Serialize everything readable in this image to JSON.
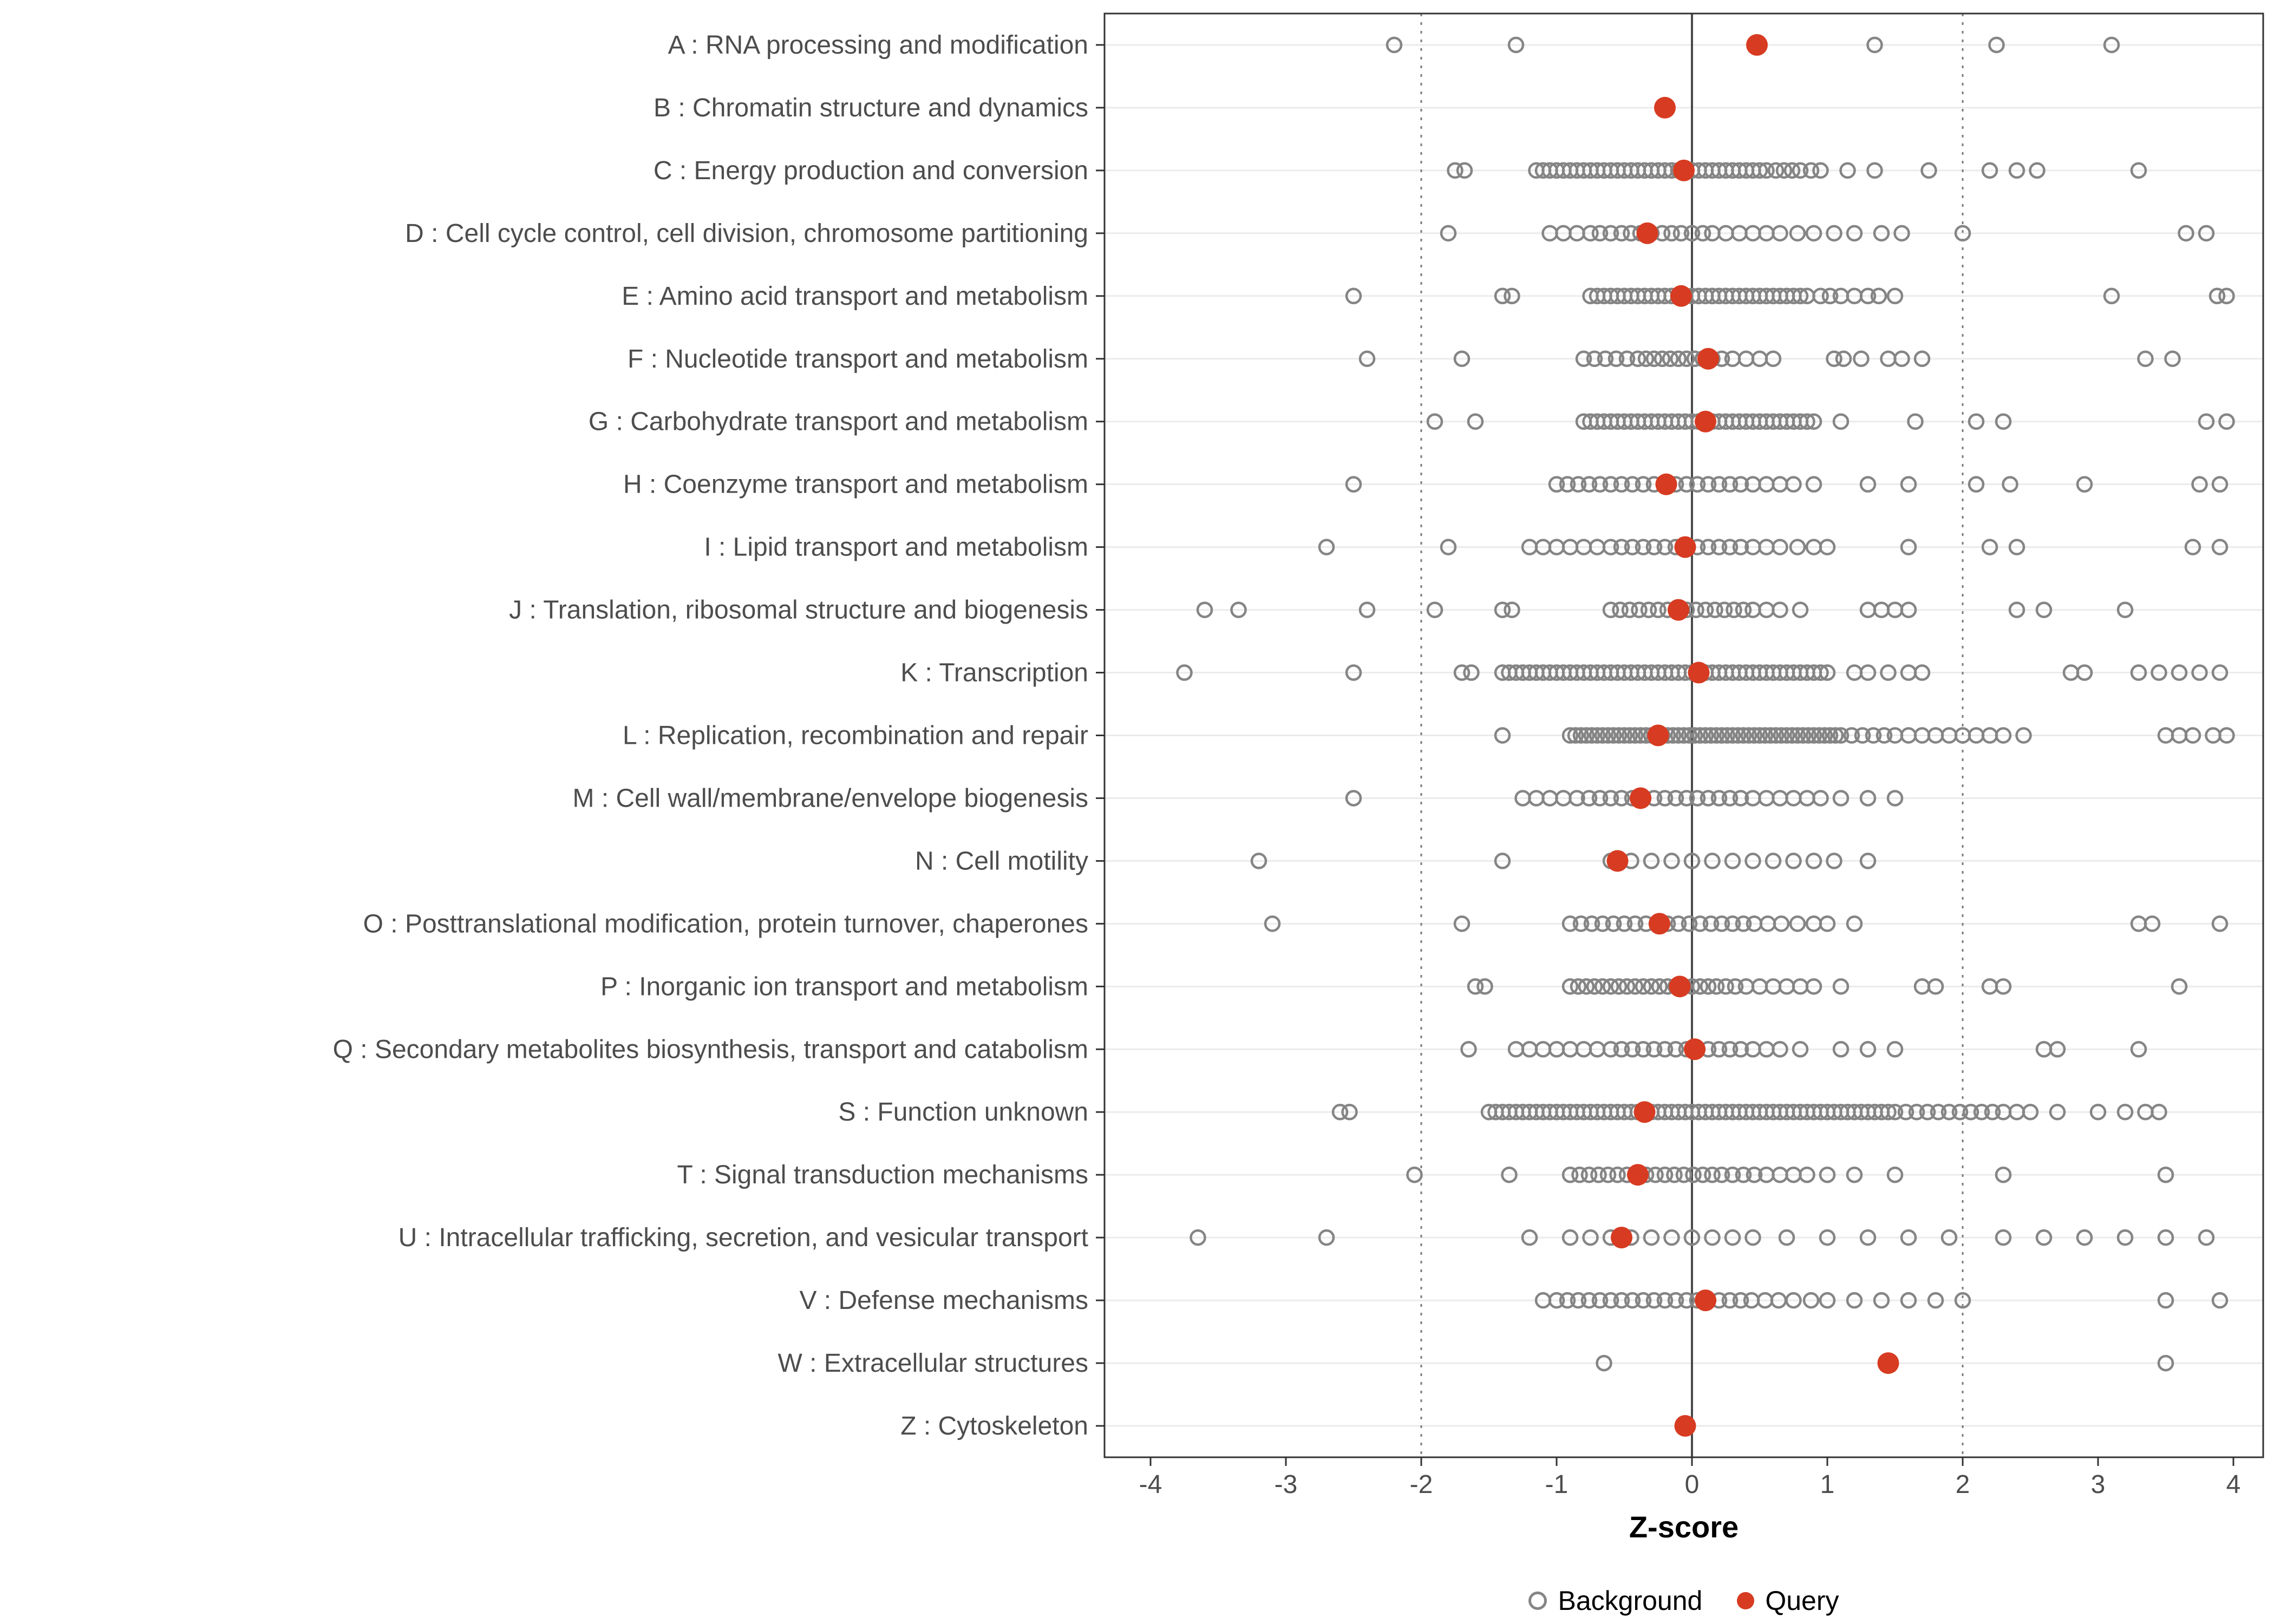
{
  "chart_data": {
    "type": "scatter",
    "title": "",
    "xlabel": "Z-score",
    "ylabel": "",
    "xlim": [
      -4.45,
      4.3
    ],
    "x_ticks": [
      -4,
      -3,
      -2,
      -1,
      0,
      1,
      2,
      3,
      4
    ],
    "grid": "horizontal-light",
    "reference_lines": {
      "solid": 0,
      "dotted": [
        -2,
        2
      ]
    },
    "legend": {
      "position": "bottom",
      "background_label": "Background",
      "query_label": "Query"
    },
    "colors": {
      "background_stroke": "#858585",
      "query_fill": "#d73b21",
      "axis_text": "#4d4d4d",
      "panel_border": "#333333",
      "gridline": "#ebebeb",
      "zero_line": "#4a4a4a",
      "dotted_line": "#7a7a7a"
    },
    "categories": [
      "A : RNA processing and modification",
      "B : Chromatin structure and dynamics",
      "C : Energy production and conversion",
      "D : Cell cycle control, cell division, chromosome partitioning",
      "E : Amino acid transport and metabolism",
      "F : Nucleotide transport and metabolism",
      "G : Carbohydrate transport and metabolism",
      "H : Coenzyme transport and metabolism",
      "I : Lipid transport and metabolism",
      "J : Translation, ribosomal structure and biogenesis",
      "K : Transcription",
      "L : Replication, recombination and repair",
      "M : Cell wall/membrane/envelope biogenesis",
      "N : Cell motility",
      "O : Posttranslational modification, protein turnover, chaperones",
      "P : Inorganic ion transport and metabolism",
      "Q : Secondary metabolites biosynthesis, transport and catabolism",
      "S : Function unknown",
      "T : Signal transduction mechanisms",
      "U : Intracellular trafficking, secretion, and vesicular transport",
      "V : Defense mechanisms",
      "W : Extracellular structures",
      "Z : Cytoskeleton"
    ],
    "query_values": [
      0.48,
      -0.2,
      -0.06,
      -0.33,
      -0.08,
      0.12,
      0.1,
      -0.19,
      -0.05,
      -0.1,
      0.05,
      -0.25,
      -0.38,
      -0.55,
      -0.24,
      -0.09,
      0.02,
      -0.35,
      -0.4,
      -0.52,
      0.1,
      1.45,
      -0.05
    ],
    "background_values": [
      [
        -2.2,
        -1.3,
        1.35,
        2.25,
        3.1
      ],
      [],
      [
        -1.75,
        -1.68,
        -1.15,
        -1.1,
        -1.05,
        -1.0,
        -0.95,
        -0.9,
        -0.85,
        -0.8,
        -0.75,
        -0.7,
        -0.65,
        -0.6,
        -0.55,
        -0.5,
        -0.45,
        -0.4,
        -0.35,
        -0.3,
        -0.25,
        -0.2,
        -0.15,
        -0.1,
        -0.05,
        0,
        0.05,
        0.1,
        0.15,
        0.2,
        0.25,
        0.3,
        0.35,
        0.4,
        0.45,
        0.5,
        0.55,
        0.62,
        0.68,
        0.74,
        0.8,
        0.88,
        0.95,
        1.15,
        1.35,
        1.75,
        2.2,
        2.4,
        2.55,
        3.3
      ],
      [
        -1.8,
        -1.05,
        -0.95,
        -0.85,
        -0.75,
        -0.68,
        -0.6,
        -0.52,
        -0.45,
        -0.38,
        -0.3,
        -0.22,
        -0.15,
        -0.08,
        0,
        0.08,
        0.15,
        0.25,
        0.35,
        0.45,
        0.55,
        0.65,
        0.78,
        0.9,
        1.05,
        1.2,
        1.4,
        1.55,
        2.0,
        3.65,
        3.8
      ],
      [
        -2.5,
        -1.4,
        -1.33,
        -0.75,
        -0.7,
        -0.65,
        -0.6,
        -0.55,
        -0.5,
        -0.45,
        -0.4,
        -0.35,
        -0.3,
        -0.25,
        -0.2,
        -0.15,
        -0.1,
        -0.05,
        0,
        0.05,
        0.1,
        0.15,
        0.2,
        0.25,
        0.3,
        0.35,
        0.4,
        0.45,
        0.5,
        0.55,
        0.6,
        0.65,
        0.7,
        0.75,
        0.8,
        0.85,
        0.95,
        1.02,
        1.1,
        1.2,
        1.3,
        1.38,
        1.5,
        3.1,
        3.88,
        3.95
      ],
      [
        -2.4,
        -1.7,
        -0.8,
        -0.72,
        -0.64,
        -0.56,
        -0.48,
        -0.4,
        -0.34,
        -0.28,
        -0.22,
        -0.16,
        -0.1,
        -0.04,
        0.02,
        0.08,
        0.15,
        0.22,
        0.3,
        0.4,
        0.5,
        0.6,
        1.05,
        1.12,
        1.25,
        1.45,
        1.55,
        1.7,
        3.35,
        3.55
      ],
      [
        -1.9,
        -1.6,
        -0.8,
        -0.75,
        -0.7,
        -0.65,
        -0.6,
        -0.55,
        -0.5,
        -0.45,
        -0.4,
        -0.35,
        -0.3,
        -0.25,
        -0.2,
        -0.15,
        -0.1,
        -0.05,
        0,
        0.05,
        0.1,
        0.15,
        0.2,
        0.25,
        0.3,
        0.35,
        0.4,
        0.45,
        0.5,
        0.55,
        0.6,
        0.65,
        0.7,
        0.75,
        0.8,
        0.85,
        0.9,
        1.1,
        1.65,
        2.1,
        2.3,
        3.8,
        3.95
      ],
      [
        -2.5,
        -1.0,
        -0.92,
        -0.84,
        -0.76,
        -0.68,
        -0.6,
        -0.52,
        -0.44,
        -0.36,
        -0.28,
        -0.2,
        -0.12,
        -0.04,
        0.04,
        0.12,
        0.2,
        0.28,
        0.36,
        0.45,
        0.55,
        0.65,
        0.75,
        0.9,
        1.3,
        1.6,
        2.1,
        2.35,
        2.9,
        3.75,
        3.9
      ],
      [
        -2.7,
        -1.8,
        -1.2,
        -1.1,
        -1.0,
        -0.9,
        -0.8,
        -0.7,
        -0.6,
        -0.52,
        -0.44,
        -0.36,
        -0.28,
        -0.2,
        -0.12,
        -0.04,
        0.04,
        0.12,
        0.2,
        0.28,
        0.36,
        0.45,
        0.55,
        0.65,
        0.78,
        0.9,
        1.0,
        1.6,
        2.2,
        2.4,
        3.7,
        3.9
      ],
      [
        -3.6,
        -3.35,
        -2.4,
        -1.9,
        -1.4,
        -1.33,
        -0.6,
        -0.53,
        -0.46,
        -0.39,
        -0.32,
        -0.25,
        -0.18,
        -0.11,
        -0.04,
        0.03,
        0.1,
        0.17,
        0.24,
        0.31,
        0.38,
        0.45,
        0.55,
        0.65,
        0.8,
        1.3,
        1.4,
        1.5,
        1.6,
        2.4,
        2.6,
        3.2
      ],
      [
        -3.75,
        -2.5,
        -1.7,
        -1.63,
        -1.4,
        -1.35,
        -1.3,
        -1.25,
        -1.2,
        -1.15,
        -1.1,
        -1.05,
        -1.0,
        -0.95,
        -0.9,
        -0.85,
        -0.8,
        -0.75,
        -0.7,
        -0.65,
        -0.6,
        -0.55,
        -0.5,
        -0.45,
        -0.4,
        -0.35,
        -0.3,
        -0.25,
        -0.2,
        -0.15,
        -0.1,
        -0.05,
        0,
        0.05,
        0.1,
        0.15,
        0.2,
        0.25,
        0.3,
        0.35,
        0.4,
        0.45,
        0.5,
        0.55,
        0.6,
        0.65,
        0.7,
        0.75,
        0.8,
        0.85,
        0.9,
        0.95,
        1.0,
        1.2,
        1.3,
        1.45,
        1.6,
        1.7,
        2.8,
        2.9,
        3.3,
        3.45,
        3.6,
        3.75,
        3.9
      ],
      [
        -1.4,
        -0.9,
        -0.86,
        -0.82,
        -0.78,
        -0.74,
        -0.7,
        -0.66,
        -0.62,
        -0.58,
        -0.54,
        -0.5,
        -0.46,
        -0.42,
        -0.38,
        -0.34,
        -0.3,
        -0.26,
        -0.22,
        -0.18,
        -0.14,
        -0.1,
        -0.06,
        -0.02,
        0.02,
        0.06,
        0.1,
        0.14,
        0.18,
        0.22,
        0.26,
        0.3,
        0.34,
        0.38,
        0.42,
        0.46,
        0.5,
        0.54,
        0.58,
        0.62,
        0.66,
        0.7,
        0.74,
        0.78,
        0.82,
        0.86,
        0.9,
        0.94,
        0.98,
        1.02,
        1.06,
        1.1,
        1.18,
        1.26,
        1.34,
        1.42,
        1.5,
        1.6,
        1.7,
        1.8,
        1.9,
        2.0,
        2.1,
        2.2,
        2.3,
        2.45,
        3.5,
        3.6,
        3.7,
        3.85,
        3.95
      ],
      [
        -2.5,
        -1.25,
        -1.15,
        -1.05,
        -0.95,
        -0.85,
        -0.76,
        -0.68,
        -0.6,
        -0.52,
        -0.44,
        -0.36,
        -0.28,
        -0.2,
        -0.12,
        -0.04,
        0.04,
        0.12,
        0.2,
        0.28,
        0.36,
        0.45,
        0.55,
        0.65,
        0.75,
        0.85,
        0.95,
        1.1,
        1.3,
        1.5
      ],
      [
        -3.2,
        -1.4,
        -0.6,
        -0.45,
        -0.3,
        -0.15,
        0,
        0.15,
        0.3,
        0.45,
        0.6,
        0.75,
        0.9,
        1.05,
        1.3
      ],
      [
        -3.1,
        -1.7,
        -0.9,
        -0.82,
        -0.74,
        -0.66,
        -0.58,
        -0.5,
        -0.42,
        -0.34,
        -0.26,
        -0.18,
        -0.1,
        -0.02,
        0.06,
        0.14,
        0.22,
        0.3,
        0.38,
        0.46,
        0.56,
        0.66,
        0.78,
        0.9,
        1.0,
        1.2,
        3.3,
        3.4,
        3.9
      ],
      [
        -1.6,
        -1.53,
        -0.9,
        -0.84,
        -0.78,
        -0.72,
        -0.66,
        -0.6,
        -0.54,
        -0.48,
        -0.42,
        -0.36,
        -0.3,
        -0.24,
        -0.18,
        -0.12,
        -0.06,
        0,
        0.06,
        0.12,
        0.18,
        0.25,
        0.32,
        0.4,
        0.5,
        0.6,
        0.7,
        0.8,
        0.9,
        1.1,
        1.7,
        1.8,
        2.2,
        2.3,
        3.6
      ],
      [
        -1.65,
        -1.3,
        -1.2,
        -1.1,
        -1.0,
        -0.9,
        -0.8,
        -0.7,
        -0.6,
        -0.52,
        -0.44,
        -0.36,
        -0.28,
        -0.2,
        -0.12,
        -0.04,
        0.04,
        0.12,
        0.2,
        0.28,
        0.36,
        0.45,
        0.55,
        0.65,
        0.8,
        1.1,
        1.3,
        1.5,
        2.6,
        2.7,
        3.3
      ],
      [
        -2.6,
        -2.53,
        -1.5,
        -1.45,
        -1.4,
        -1.35,
        -1.3,
        -1.25,
        -1.2,
        -1.15,
        -1.1,
        -1.05,
        -1.0,
        -0.95,
        -0.9,
        -0.85,
        -0.8,
        -0.75,
        -0.7,
        -0.65,
        -0.6,
        -0.55,
        -0.5,
        -0.45,
        -0.4,
        -0.35,
        -0.3,
        -0.25,
        -0.2,
        -0.15,
        -0.1,
        -0.05,
        0,
        0.05,
        0.1,
        0.15,
        0.2,
        0.25,
        0.3,
        0.35,
        0.4,
        0.45,
        0.5,
        0.55,
        0.6,
        0.65,
        0.7,
        0.75,
        0.8,
        0.85,
        0.9,
        0.95,
        1.0,
        1.05,
        1.1,
        1.15,
        1.2,
        1.25,
        1.3,
        1.35,
        1.4,
        1.45,
        1.5,
        1.58,
        1.66,
        1.74,
        1.82,
        1.9,
        1.98,
        2.06,
        2.14,
        2.22,
        2.3,
        2.4,
        2.5,
        2.7,
        3.0,
        3.2,
        3.35,
        3.45
      ],
      [
        -2.05,
        -1.35,
        -0.9,
        -0.83,
        -0.76,
        -0.69,
        -0.62,
        -0.55,
        -0.48,
        -0.41,
        -0.34,
        -0.27,
        -0.2,
        -0.13,
        -0.06,
        0.01,
        0.08,
        0.15,
        0.22,
        0.3,
        0.38,
        0.46,
        0.55,
        0.65,
        0.75,
        0.85,
        1.0,
        1.2,
        1.5,
        2.3,
        3.5
      ],
      [
        -3.65,
        -2.7,
        -1.2,
        -0.9,
        -0.75,
        -0.6,
        -0.45,
        -0.3,
        -0.15,
        0,
        0.15,
        0.3,
        0.45,
        0.7,
        1.0,
        1.3,
        1.6,
        1.9,
        2.3,
        2.6,
        2.9,
        3.2,
        3.5,
        3.8
      ],
      [
        -1.1,
        -1.0,
        -0.92,
        -0.84,
        -0.76,
        -0.68,
        -0.6,
        -0.52,
        -0.44,
        -0.36,
        -0.28,
        -0.2,
        -0.12,
        -0.04,
        0.04,
        0.12,
        0.2,
        0.28,
        0.36,
        0.44,
        0.54,
        0.64,
        0.75,
        0.88,
        1.0,
        1.2,
        1.4,
        1.6,
        1.8,
        2.0,
        3.5,
        3.9
      ],
      [
        -0.65,
        3.5
      ],
      []
    ]
  }
}
